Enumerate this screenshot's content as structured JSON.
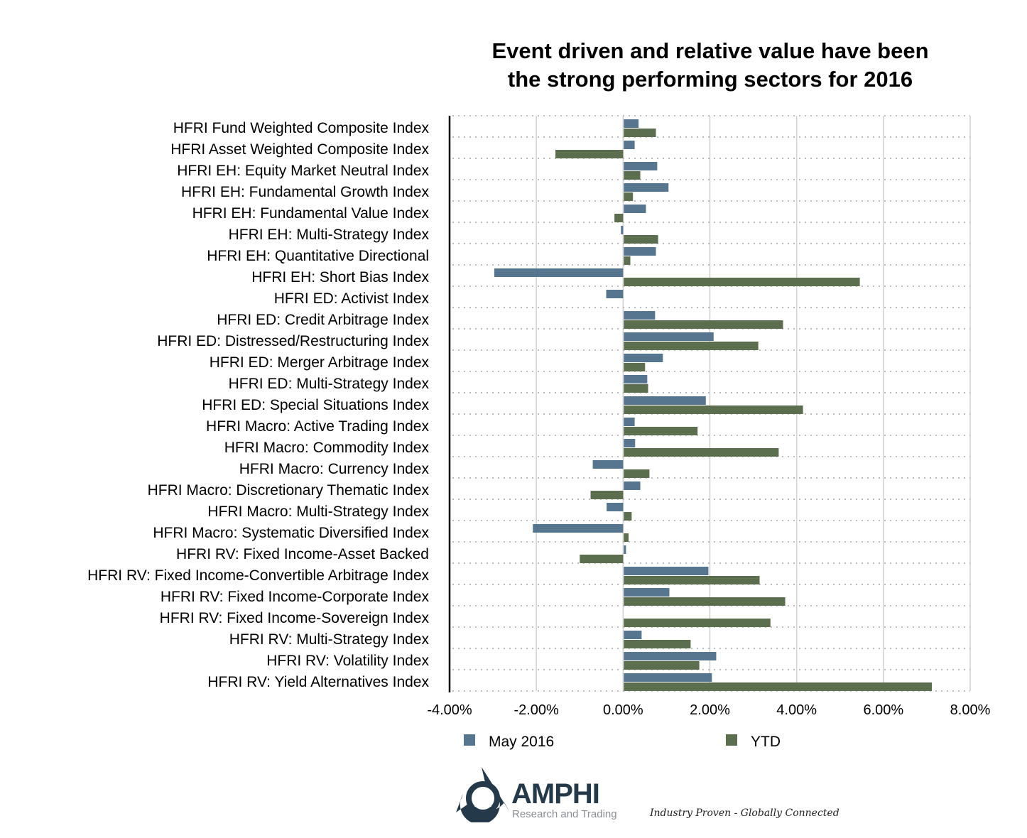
{
  "chart_data": {
    "type": "bar",
    "orientation": "horizontal",
    "title": [
      "Event driven and relative value have been",
      "the strong performing sectors for 2016"
    ],
    "categories": [
      "HFRI Fund Weighted Composite Index",
      "HFRI Asset Weighted Composite Index",
      "HFRI EH: Equity Market Neutral Index",
      "HFRI EH: Fundamental Growth Index",
      "HFRI EH: Fundamental Value Index",
      "HFRI EH: Multi-Strategy Index",
      "HFRI EH: Quantitative Directional",
      "HFRI EH: Short Bias Index",
      "HFRI ED: Activist Index",
      "HFRI ED: Credit Arbitrage Index",
      "HFRI ED: Distressed/Restructuring Index",
      "HFRI ED: Merger Arbitrage Index",
      "HFRI ED: Multi-Strategy Index",
      "HFRI ED: Special Situations Index",
      "HFRI Macro: Active Trading Index",
      "HFRI Macro: Commodity Index",
      "HFRI Macro: Currency Index",
      "HFRI Macro: Discretionary Thematic Index",
      "HFRI Macro: Multi-Strategy Index",
      "HFRI Macro: Systematic Diversified Index",
      "HFRI RV: Fixed Income-Asset Backed",
      "HFRI RV: Fixed Income-Convertible Arbitrage Index",
      "HFRI RV: Fixed Income-Corporate Index",
      "HFRI RV: Fixed Income-Sovereign Index",
      "HFRI RV: Multi-Strategy Index",
      "HFRI RV: Volatility Index",
      "HFRI RV: Yield Alternatives Index"
    ],
    "series": [
      {
        "name": "May 2016",
        "color": "#56758f",
        "values": [
          0.34,
          0.25,
          0.77,
          1.03,
          0.51,
          -0.05,
          0.74,
          -2.97,
          -0.39,
          0.72,
          2.07,
          0.9,
          0.54,
          1.89,
          0.25,
          0.26,
          -0.7,
          0.38,
          -0.38,
          -2.08,
          0.05,
          1.95,
          1.05,
          0.0,
          0.41,
          2.13,
          2.03
        ]
      },
      {
        "name": "YTD",
        "color": "#5b6e4d",
        "values": [
          0.74,
          -1.56,
          0.38,
          0.21,
          -0.2,
          0.79,
          0.15,
          5.44,
          0.0,
          3.67,
          3.1,
          0.49,
          0.56,
          4.13,
          1.7,
          3.57,
          0.59,
          -0.75,
          0.18,
          0.11,
          -1.0,
          3.13,
          3.72,
          3.38,
          1.54,
          1.74,
          7.1
        ]
      }
    ],
    "xlim": [
      -4,
      8
    ],
    "xticks": [
      "-4.00%",
      "-2.00%",
      "0.00%",
      "2.00%",
      "4.00%",
      "6.00%",
      "8.00%"
    ],
    "grid": true,
    "legend_position": "bottom"
  },
  "branding": {
    "logo": "AMPHI",
    "logo_sub": "Research and Trading",
    "tagline": "Industry Proven - Globally Connected"
  }
}
